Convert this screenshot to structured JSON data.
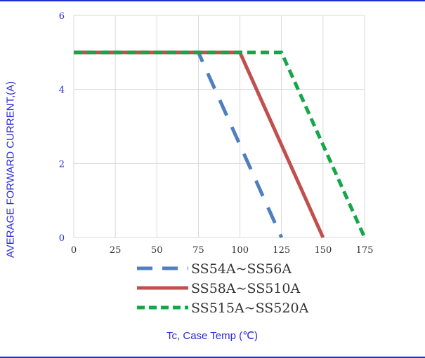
{
  "chart_data": {
    "type": "line",
    "ylabel": "AVERAGE FORWARD CURRENT,(A)",
    "xlabel": "Tc, Case Temp (℃)",
    "xlim": [
      0,
      175
    ],
    "ylim": [
      0,
      6
    ],
    "x_ticks": [
      0,
      25,
      50,
      75,
      100,
      125,
      150,
      175
    ],
    "y_ticks": [
      0,
      2,
      4,
      6
    ],
    "grid": true,
    "legend_position": "bottom",
    "series": [
      {
        "name": "SS54A~SS56A",
        "color": "#4f7fbf",
        "dash": "long-dash",
        "x": [
          0,
          75,
          125
        ],
        "y": [
          5,
          5,
          0
        ]
      },
      {
        "name": "SS58A~SS510A",
        "color": "#c0504d",
        "dash": "solid",
        "x": [
          0,
          100,
          150
        ],
        "y": [
          5,
          5,
          0
        ]
      },
      {
        "name": "SS515A~SS520A",
        "color": "#17a54a",
        "dash": "dash",
        "x": [
          0,
          125,
          175
        ],
        "y": [
          5,
          5,
          0
        ]
      }
    ]
  }
}
